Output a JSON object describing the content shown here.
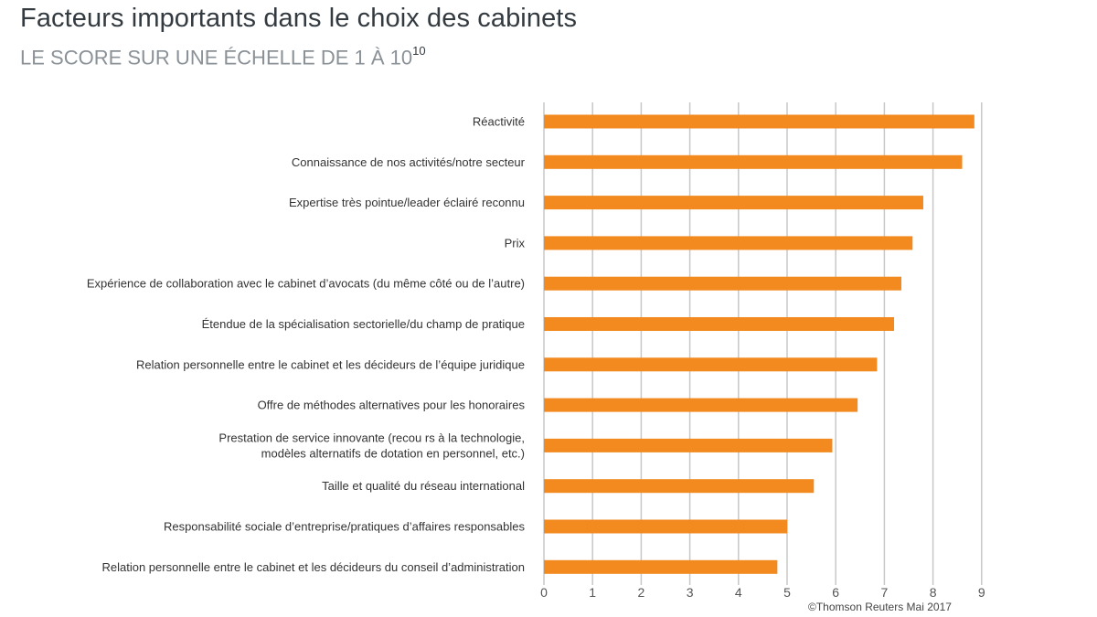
{
  "title": "Facteurs importants dans le choix des cabinets",
  "subtitle": "LE SCORE SUR UNE ÉCHELLE DE 1 À 10",
  "subtitle_sup": "10",
  "source": "©Thomson Reuters Mai 2017",
  "bar_color": "#f28a1f",
  "grid_color": "#c8c8c8",
  "chart_data": {
    "type": "bar",
    "orientation": "horizontal",
    "title": "Facteurs importants dans le choix des cabinets",
    "subtitle": "LE SCORE SUR UNE ÉCHELLE DE 1 À 10",
    "xlim": [
      0,
      9
    ],
    "xticks": [
      "0",
      "1",
      "2",
      "3",
      "4",
      "5",
      "6",
      "7",
      "8",
      "9"
    ],
    "grid": true,
    "categories": [
      [
        "Réactivité"
      ],
      [
        "Connaissance de nos activités/notre secteur"
      ],
      [
        "Expertise très pointue/leader éclairé reconnu"
      ],
      [
        "Prix"
      ],
      [
        "Expérience de collaboration avec le cabinet d’avocats (du même côté ou de l’autre)"
      ],
      [
        "Étendue de la spécialisation sectorielle/du champ de pratique"
      ],
      [
        "Relation personnelle entre le cabinet et les décideurs de l’équipe juridique"
      ],
      [
        "Offre de méthodes alternatives pour les honoraires"
      ],
      [
        "Prestation de service innovante (recou rs à la technologie,",
        "modèles alternatifs de dotation en personnel, etc.)"
      ],
      [
        "Taille et qualité du réseau international"
      ],
      [
        "Responsabilité sociale d’entreprise/pratiques d’affaires responsables"
      ],
      [
        "Relation personnelle entre le cabinet et les décideurs du conseil d’administration"
      ]
    ],
    "values": [
      8.85,
      8.6,
      7.8,
      7.58,
      7.35,
      7.2,
      6.85,
      6.45,
      5.93,
      5.55,
      5.0,
      4.8
    ]
  }
}
